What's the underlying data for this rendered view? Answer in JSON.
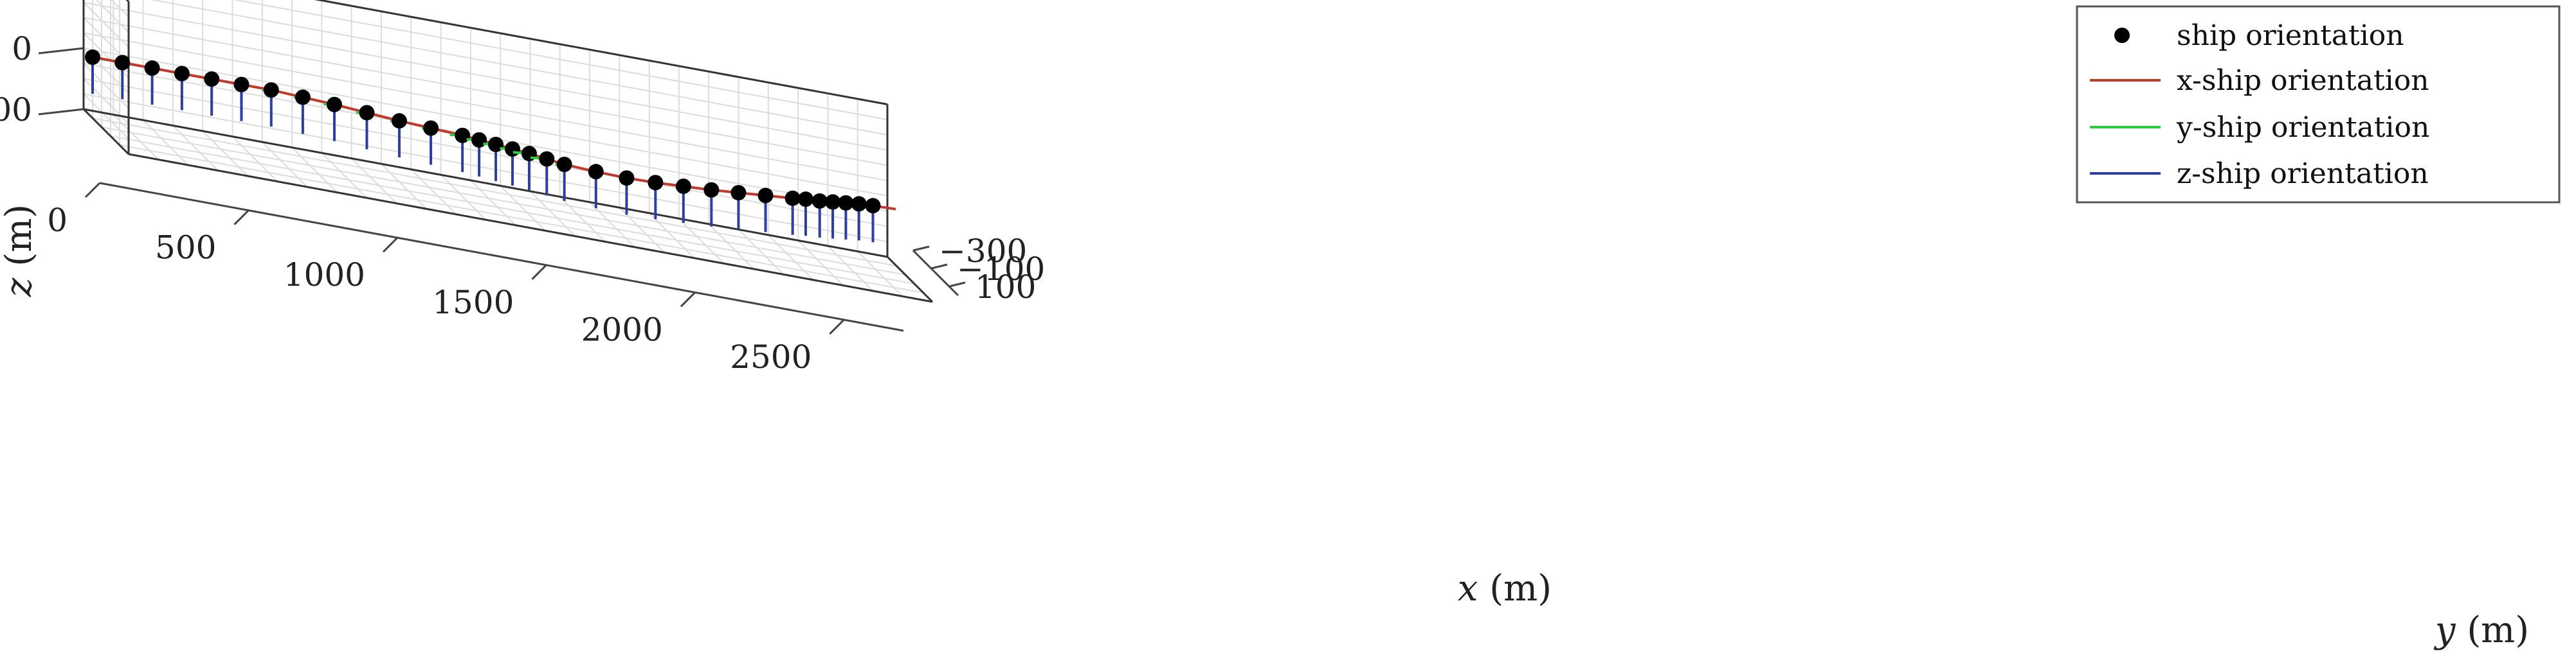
{
  "chart_data": {
    "type": "line3d",
    "title": "",
    "x_axis": {
      "label_var": "x",
      "label_unit": " (m)",
      "range": [
        0,
        2700
      ],
      "ticks": [
        0,
        500,
        1000,
        1500,
        2000,
        2500
      ],
      "tick_labels": [
        "0",
        "500",
        "1000",
        "1500",
        "2000",
        "2500"
      ]
    },
    "y_axis": {
      "label_var": "y",
      "label_unit": " (m)",
      "range": [
        -300,
        200
      ],
      "ticks": [
        -300,
        -100,
        100
      ],
      "tick_labels": [
        "−300",
        "−100",
        "100"
      ]
    },
    "z_axis": {
      "label_var": "z",
      "label_unit": " (m)",
      "range": [
        -150,
        100
      ],
      "ticks": [
        -100,
        0,
        100
      ],
      "tick_labels": [
        "−100",
        "0",
        "100"
      ],
      "reversed": true
    },
    "grid": true,
    "legend": {
      "placement": "top-right",
      "entries": [
        {
          "label": "ship orientation",
          "style": "marker",
          "color": "#000000"
        },
        {
          "label": "x-ship orientation",
          "style": "line",
          "color": "#c0392b"
        },
        {
          "label": "y-ship orientation",
          "style": "line",
          "color": "#2ecc40"
        },
        {
          "label": "z-ship orientation",
          "style": "line",
          "color": "#2c3e9e"
        }
      ]
    },
    "series": [
      {
        "label": "ship orientation",
        "x": [
          0,
          100,
          200,
          300,
          400,
          500,
          600,
          700,
          800,
          900,
          1000,
          1100,
          1200,
          1250,
          1300,
          1350,
          1400,
          1450,
          1500,
          1600,
          1700,
          1800,
          1900,
          2000,
          2100,
          2200,
          2300,
          2350,
          2400,
          2450,
          2500,
          2550,
          2600
        ],
        "y": [
          -200,
          -200,
          -200,
          -200,
          -200,
          -200,
          -200,
          -180,
          -160,
          -130,
          -100,
          -80,
          -60,
          -40,
          -20,
          0,
          20,
          50,
          80,
          100,
          110,
          100,
          80,
          60,
          30,
          0,
          -30,
          -50,
          -60,
          -80,
          -100,
          -120,
          -130
        ],
        "z": [
          0,
          0,
          0,
          0,
          0,
          0,
          0,
          0,
          0,
          0,
          0,
          0,
          0,
          0,
          0,
          0,
          0,
          0,
          0,
          0,
          0,
          0,
          0,
          0,
          0,
          0,
          0,
          0,
          0,
          0,
          0,
          0,
          0
        ]
      }
    ]
  }
}
